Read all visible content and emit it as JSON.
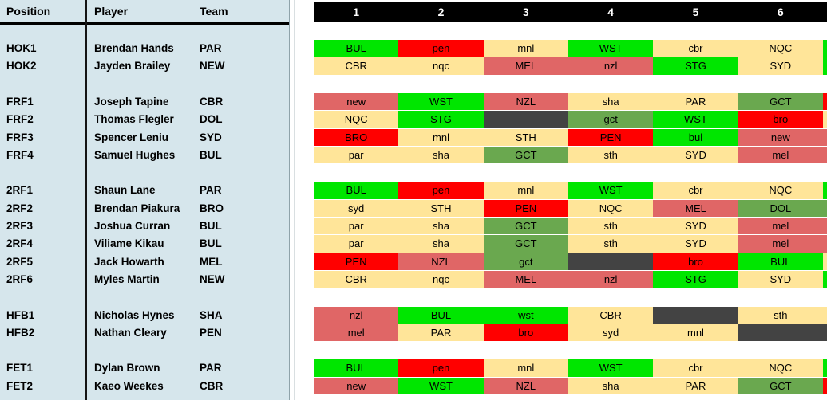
{
  "left_panel": {
    "headers": {
      "position": "Position",
      "player": "Player",
      "team": "Team"
    }
  },
  "rounds": [
    "1",
    "2",
    "3",
    "4",
    "5",
    "6"
  ],
  "palette": {
    "green": "#00e600",
    "tan": "#ffe599",
    "salmon": "#e06666",
    "red": "#ff0000",
    "olive": "#6aa84f",
    "dark": "#434343",
    "panel_bg": "#d6e6ec",
    "header_bg": "#000000",
    "header_text": "#ffffff"
  },
  "rows": [
    {
      "position": "HOK1",
      "player": "Brendan Hands",
      "team": "PAR",
      "gap_before": false,
      "edge": "green",
      "cells": [
        {
          "text": "BUL",
          "color": "green"
        },
        {
          "text": "pen",
          "color": "red"
        },
        {
          "text": "mnl",
          "color": "tan"
        },
        {
          "text": "WST",
          "color": "green"
        },
        {
          "text": "cbr",
          "color": "tan"
        },
        {
          "text": "NQC",
          "color": "tan"
        }
      ]
    },
    {
      "position": "HOK2",
      "player": "Jayden Brailey",
      "team": "NEW",
      "gap_before": false,
      "edge": "green",
      "cells": [
        {
          "text": "CBR",
          "color": "tan"
        },
        {
          "text": "nqc",
          "color": "tan"
        },
        {
          "text": "MEL",
          "color": "salmon"
        },
        {
          "text": "nzl",
          "color": "salmon"
        },
        {
          "text": "STG",
          "color": "green"
        },
        {
          "text": "SYD",
          "color": "tan"
        }
      ]
    },
    {
      "position": "FRF1",
      "player": "Joseph Tapine",
      "team": "CBR",
      "gap_before": true,
      "edge": "red",
      "cells": [
        {
          "text": "new",
          "color": "salmon"
        },
        {
          "text": "WST",
          "color": "green"
        },
        {
          "text": "NZL",
          "color": "salmon"
        },
        {
          "text": "sha",
          "color": "tan"
        },
        {
          "text": "PAR",
          "color": "tan"
        },
        {
          "text": "GCT",
          "color": "olive"
        }
      ]
    },
    {
      "position": "FRF2",
      "player": "Thomas Flegler",
      "team": "DOL",
      "gap_before": false,
      "edge": "tan",
      "cells": [
        {
          "text": "NQC",
          "color": "tan"
        },
        {
          "text": "STG",
          "color": "green"
        },
        {
          "text": "",
          "color": "dark"
        },
        {
          "text": "gct",
          "color": "olive"
        },
        {
          "text": "WST",
          "color": "green"
        },
        {
          "text": "bro",
          "color": "red"
        }
      ]
    },
    {
      "position": "FRF3",
      "player": "Spencer Leniu",
      "team": "SYD",
      "gap_before": false,
      "edge": "salmon",
      "cells": [
        {
          "text": "BRO",
          "color": "red"
        },
        {
          "text": "mnl",
          "color": "tan"
        },
        {
          "text": "STH",
          "color": "tan"
        },
        {
          "text": "PEN",
          "color": "red"
        },
        {
          "text": "bul",
          "color": "green"
        },
        {
          "text": "new",
          "color": "salmon"
        }
      ]
    },
    {
      "position": "FRF4",
      "player": "Samuel Hughes",
      "team": "BUL",
      "gap_before": false,
      "edge": "salmon",
      "cells": [
        {
          "text": "par",
          "color": "tan"
        },
        {
          "text": "sha",
          "color": "tan"
        },
        {
          "text": "GCT",
          "color": "olive"
        },
        {
          "text": "sth",
          "color": "tan"
        },
        {
          "text": "SYD",
          "color": "tan"
        },
        {
          "text": "mel",
          "color": "salmon"
        }
      ]
    },
    {
      "position": "2RF1",
      "player": "Shaun Lane",
      "team": "PAR",
      "gap_before": true,
      "edge": "green",
      "cells": [
        {
          "text": "BUL",
          "color": "green"
        },
        {
          "text": "pen",
          "color": "red"
        },
        {
          "text": "mnl",
          "color": "tan"
        },
        {
          "text": "WST",
          "color": "green"
        },
        {
          "text": "cbr",
          "color": "tan"
        },
        {
          "text": "NQC",
          "color": "tan"
        }
      ]
    },
    {
      "position": "2RF2",
      "player": "Brendan Piakura",
      "team": "BRO",
      "gap_before": false,
      "edge": "olive",
      "cells": [
        {
          "text": "syd",
          "color": "tan"
        },
        {
          "text": "STH",
          "color": "tan"
        },
        {
          "text": "PEN",
          "color": "red"
        },
        {
          "text": "NQC",
          "color": "tan"
        },
        {
          "text": "MEL",
          "color": "salmon"
        },
        {
          "text": "DOL",
          "color": "olive"
        }
      ]
    },
    {
      "position": "2RF3",
      "player": "Joshua Curran",
      "team": "BUL",
      "gap_before": false,
      "edge": "salmon",
      "cells": [
        {
          "text": "par",
          "color": "tan"
        },
        {
          "text": "sha",
          "color": "tan"
        },
        {
          "text": "GCT",
          "color": "olive"
        },
        {
          "text": "sth",
          "color": "tan"
        },
        {
          "text": "SYD",
          "color": "tan"
        },
        {
          "text": "mel",
          "color": "salmon"
        }
      ]
    },
    {
      "position": "2RF4",
      "player": "Viliame Kikau",
      "team": "BUL",
      "gap_before": false,
      "edge": "salmon",
      "cells": [
        {
          "text": "par",
          "color": "tan"
        },
        {
          "text": "sha",
          "color": "tan"
        },
        {
          "text": "GCT",
          "color": "olive"
        },
        {
          "text": "sth",
          "color": "tan"
        },
        {
          "text": "SYD",
          "color": "tan"
        },
        {
          "text": "mel",
          "color": "salmon"
        }
      ]
    },
    {
      "position": "2RF5",
      "player": "Jack Howarth",
      "team": "MEL",
      "gap_before": false,
      "edge": "tan",
      "cells": [
        {
          "text": "PEN",
          "color": "red"
        },
        {
          "text": "NZL",
          "color": "salmon"
        },
        {
          "text": "gct",
          "color": "olive"
        },
        {
          "text": "",
          "color": "dark"
        },
        {
          "text": "bro",
          "color": "red"
        },
        {
          "text": "BUL",
          "color": "green"
        }
      ]
    },
    {
      "position": "2RF6",
      "player": "Myles Martin",
      "team": "NEW",
      "gap_before": false,
      "edge": "green",
      "cells": [
        {
          "text": "CBR",
          "color": "tan"
        },
        {
          "text": "nqc",
          "color": "tan"
        },
        {
          "text": "MEL",
          "color": "salmon"
        },
        {
          "text": "nzl",
          "color": "salmon"
        },
        {
          "text": "STG",
          "color": "green"
        },
        {
          "text": "SYD",
          "color": "tan"
        }
      ]
    },
    {
      "position": "HFB1",
      "player": "Nicholas Hynes",
      "team": "SHA",
      "gap_before": true,
      "edge": "tan",
      "cells": [
        {
          "text": "nzl",
          "color": "salmon"
        },
        {
          "text": "BUL",
          "color": "green"
        },
        {
          "text": "wst",
          "color": "green"
        },
        {
          "text": "CBR",
          "color": "tan"
        },
        {
          "text": "",
          "color": "dark"
        },
        {
          "text": "sth",
          "color": "tan"
        }
      ]
    },
    {
      "position": "HFB2",
      "player": "Nathan Cleary",
      "team": "PEN",
      "gap_before": false,
      "edge": "dark",
      "cells": [
        {
          "text": "mel",
          "color": "salmon"
        },
        {
          "text": "PAR",
          "color": "tan"
        },
        {
          "text": "bro",
          "color": "red"
        },
        {
          "text": "syd",
          "color": "tan"
        },
        {
          "text": "mnl",
          "color": "tan"
        },
        {
          "text": "",
          "color": "dark"
        }
      ]
    },
    {
      "position": "FET1",
      "player": "Dylan Brown",
      "team": "PAR",
      "gap_before": true,
      "edge": "green",
      "cells": [
        {
          "text": "BUL",
          "color": "green"
        },
        {
          "text": "pen",
          "color": "red"
        },
        {
          "text": "mnl",
          "color": "tan"
        },
        {
          "text": "WST",
          "color": "green"
        },
        {
          "text": "cbr",
          "color": "tan"
        },
        {
          "text": "NQC",
          "color": "tan"
        }
      ]
    },
    {
      "position": "FET2",
      "player": "Kaeo Weekes",
      "team": "CBR",
      "gap_before": false,
      "edge": "red",
      "cells": [
        {
          "text": "new",
          "color": "salmon"
        },
        {
          "text": "WST",
          "color": "green"
        },
        {
          "text": "NZL",
          "color": "salmon"
        },
        {
          "text": "sha",
          "color": "tan"
        },
        {
          "text": "PAR",
          "color": "tan"
        },
        {
          "text": "GCT",
          "color": "olive"
        }
      ]
    }
  ]
}
